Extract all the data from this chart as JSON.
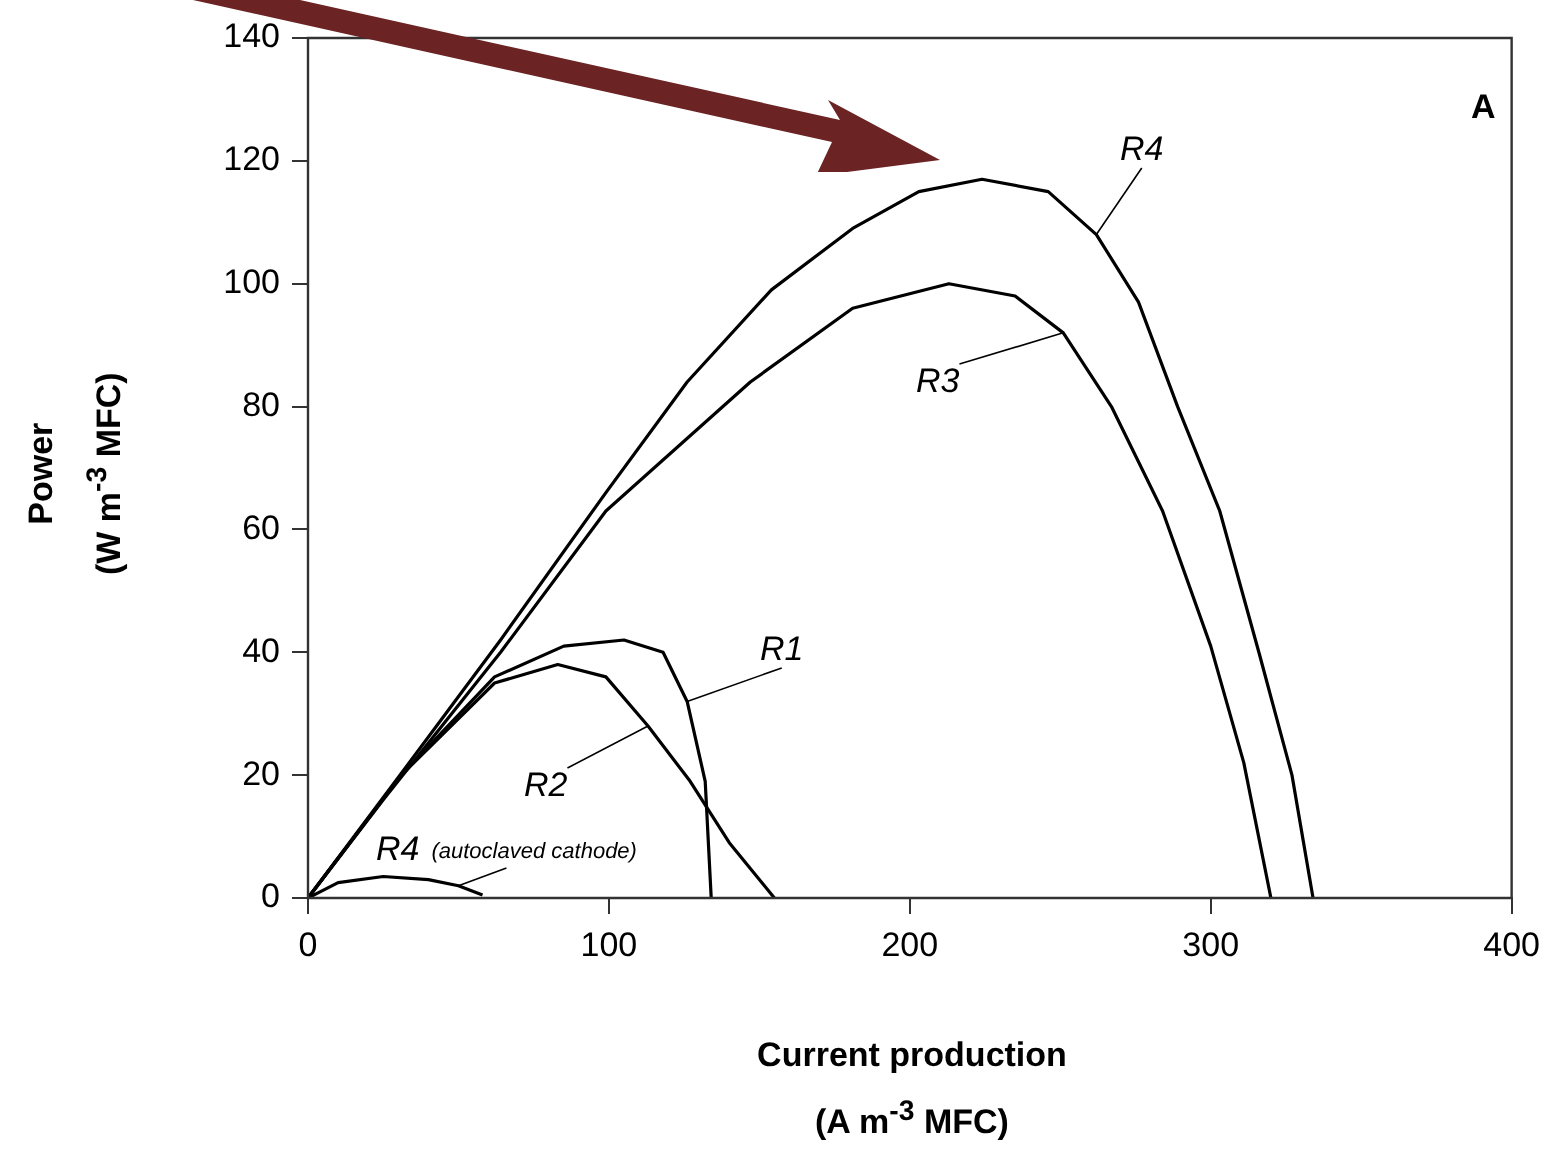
{
  "chart_data": {
    "type": "line",
    "xlabel": "Current production\n(A m$^{-3}$ MFC)",
    "ylabel": "Power\n(W m$^{-3}$ MFC)",
    "annotations": [
      "A"
    ],
    "xlim": [
      0,
      400
    ],
    "xticks": [
      0,
      100,
      200,
      300,
      400
    ],
    "ylim": [
      0,
      140
    ],
    "yticks": [
      0,
      20,
      40,
      60,
      80,
      100,
      120,
      140
    ],
    "grid": false,
    "legend": false,
    "marker": "none",
    "line_style": "solid",
    "series": [
      {
        "name": "R4",
        "color": "#000000",
        "x": [
          0,
          26,
          64,
          99,
          126,
          154,
          181,
          203,
          224,
          246,
          262,
          276,
          289,
          303,
          316,
          327,
          334
        ],
        "values": [
          0,
          17,
          42,
          66,
          84,
          99,
          109,
          115,
          117,
          115,
          108,
          97,
          80,
          63,
          40,
          20,
          0
        ]
      },
      {
        "name": "R3",
        "color": "#000000",
        "x": [
          0,
          25,
          64,
          99,
          147,
          181,
          213,
          235,
          251,
          267,
          284,
          300,
          311,
          320
        ],
        "values": [
          0,
          16,
          40,
          63,
          84,
          96,
          100,
          98,
          92,
          80,
          63,
          41,
          22,
          0
        ]
      },
      {
        "name": "R1",
        "color": "#000000",
        "x": [
          0,
          31,
          62,
          85,
          105,
          118,
          126,
          132,
          134
        ],
        "values": [
          0,
          20,
          36,
          41,
          42,
          40,
          32,
          19,
          0
        ]
      },
      {
        "name": "R2",
        "color": "#000000",
        "x": [
          0,
          31,
          62,
          83,
          99,
          113,
          127,
          140,
          155
        ],
        "values": [
          0,
          20,
          35,
          38,
          36,
          28,
          19,
          9,
          0
        ]
      },
      {
        "name": "R4 (autoclaved cathode)",
        "color": "#000000",
        "x": [
          0,
          10,
          25,
          40,
          50,
          58
        ],
        "values": [
          0,
          2.5,
          3.5,
          3,
          2,
          0.5
        ]
      }
    ]
  }
}
